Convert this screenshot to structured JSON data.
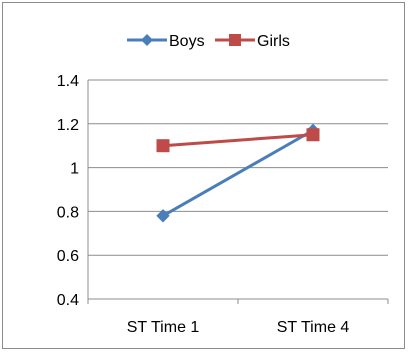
{
  "chart_data": {
    "type": "line",
    "categories": [
      "ST Time 1",
      "ST Time 4"
    ],
    "series": [
      {
        "name": "Boys",
        "values": [
          0.78,
          1.17
        ],
        "color": "#4a7ebb",
        "marker": "diamond"
      },
      {
        "name": "Girls",
        "values": [
          1.1,
          1.15
        ],
        "color": "#be4b48",
        "marker": "square"
      }
    ],
    "ylim": [
      0.4,
      1.4
    ],
    "yticks": [
      "0.4",
      "0.6",
      "0.8",
      "1",
      "1.2",
      "1.4"
    ],
    "grid": true,
    "legend_position": "top",
    "title": "",
    "xlabel": "",
    "ylabel": ""
  }
}
